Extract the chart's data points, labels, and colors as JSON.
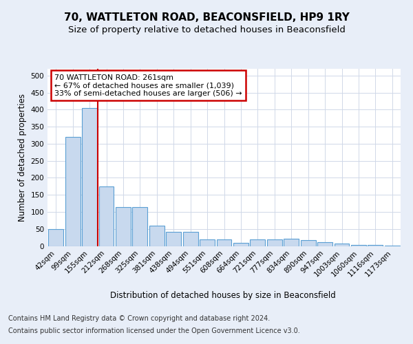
{
  "title": "70, WATTLETON ROAD, BEACONSFIELD, HP9 1RY",
  "subtitle": "Size of property relative to detached houses in Beaconsfield",
  "xlabel": "Distribution of detached houses by size in Beaconsfield",
  "ylabel": "Number of detached properties",
  "categories": [
    "42sqm",
    "99sqm",
    "155sqm",
    "212sqm",
    "268sqm",
    "325sqm",
    "381sqm",
    "438sqm",
    "494sqm",
    "551sqm",
    "608sqm",
    "664sqm",
    "721sqm",
    "777sqm",
    "834sqm",
    "890sqm",
    "947sqm",
    "1003sqm",
    "1060sqm",
    "1116sqm",
    "1173sqm"
  ],
  "values": [
    50,
    320,
    405,
    175,
    115,
    115,
    60,
    42,
    42,
    20,
    20,
    10,
    20,
    20,
    22,
    18,
    12,
    8,
    4,
    3,
    2
  ],
  "bar_color": "#c8d9ee",
  "bar_edge_color": "#5a9fd4",
  "vline_color": "#cc0000",
  "annotation_text": "70 WATTLETON ROAD: 261sqm\n← 67% of detached houses are smaller (1,039)\n33% of semi-detached houses are larger (506) →",
  "annotation_box_edgecolor": "#cc0000",
  "ylim": [
    0,
    520
  ],
  "yticks": [
    0,
    50,
    100,
    150,
    200,
    250,
    300,
    350,
    400,
    450,
    500
  ],
  "footer_line1": "Contains HM Land Registry data © Crown copyright and database right 2024.",
  "footer_line2": "Contains public sector information licensed under the Open Government Licence v3.0.",
  "background_color": "#e8eef8",
  "plot_bg_color": "#ffffff",
  "title_fontsize": 11,
  "subtitle_fontsize": 9.5,
  "axis_label_fontsize": 8.5,
  "tick_fontsize": 7.5,
  "footer_fontsize": 7.0,
  "vline_xindex": 2.5
}
